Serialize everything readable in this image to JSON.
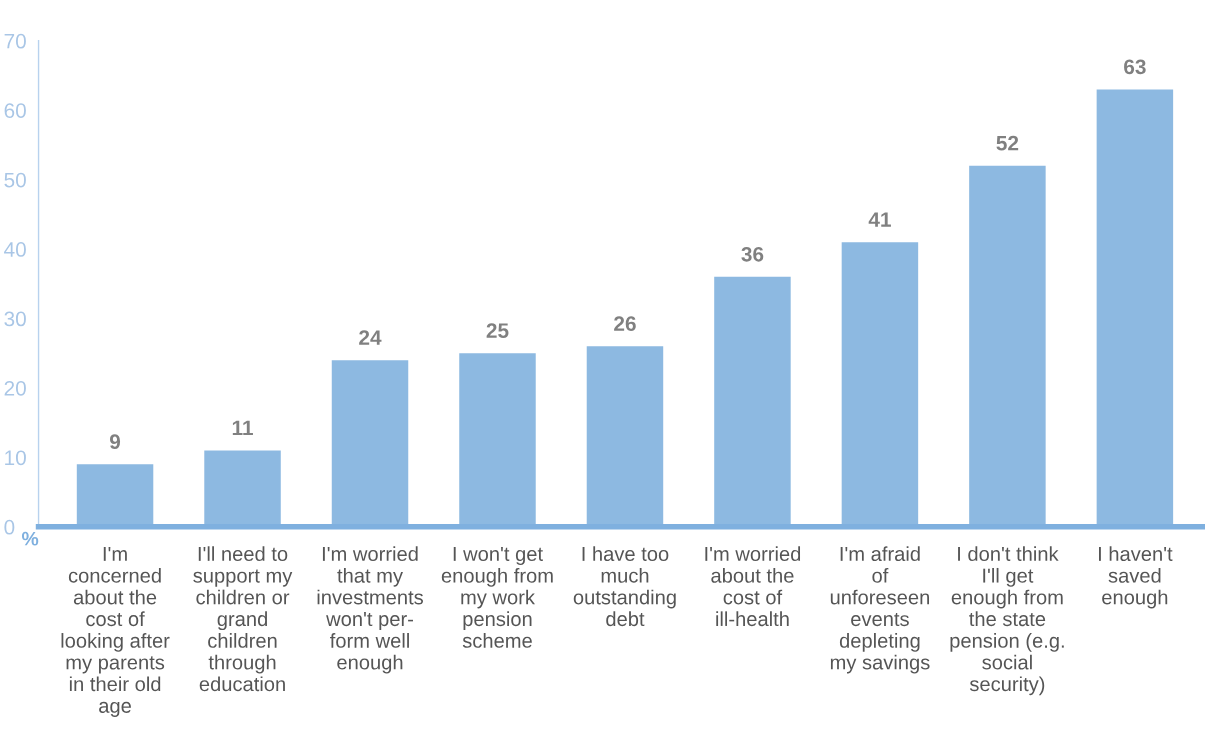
{
  "chart_data": {
    "type": "bar",
    "ylabel": "%",
    "categories": [
      "I'm\nconcerned\nabout the\ncost of\nlooking after\nmy parents\nin their old\nage",
      "I'll need to\nsupport my\nchildren or\ngrand\nchildren\nthrough\neducation",
      "I'm worried\nthat my\ninvestments\nwon't per-\nform well\nenough",
      "I won't get\nenough from\nmy work\npension\nscheme",
      "I have too\nmuch\noutstanding\ndebt",
      "I'm worried\nabout the\ncost of\nill-health",
      "I'm afraid\nof\nunforeseen\nevents\ndepleting\nmy savings",
      "I don't think\nI'll get\nenough from\nthe state\npension (e.g.\nsocial\nsecurity)",
      "I haven't\nsaved\nenough"
    ],
    "values": [
      9,
      11,
      24,
      25,
      26,
      36,
      41,
      52,
      63
    ],
    "color": "#8db9e1",
    "ylim": [
      0,
      70
    ],
    "yticks": [
      0,
      10,
      20,
      30,
      40,
      50,
      60,
      70
    ],
    "data_labels": true,
    "grid": false,
    "legend": false
  }
}
